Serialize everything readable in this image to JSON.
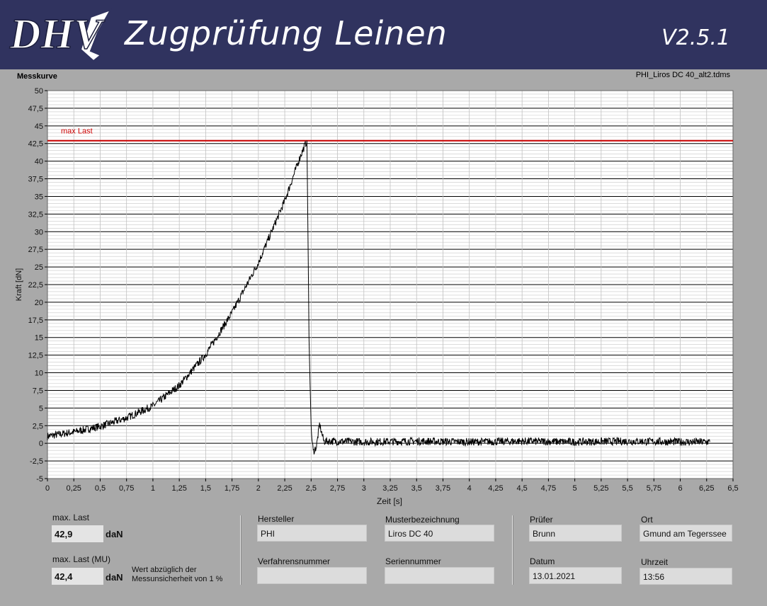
{
  "header": {
    "logo_text": "DHV",
    "title": "Zugprüfung Leinen",
    "version": "V2.5.1"
  },
  "chart_panel": {
    "caption": "Messkurve",
    "file_name": "PHI_Liros DC 40_alt2.tdms"
  },
  "chart_data": {
    "type": "line",
    "xlabel": "Zeit [s]",
    "ylabel": "Kraft [dN]",
    "xlim": [
      0,
      6.5
    ],
    "ylim": [
      -5,
      50
    ],
    "x_ticks": [
      "0",
      "0,25",
      "0,5",
      "0,75",
      "1",
      "1,25",
      "1,5",
      "1,75",
      "2",
      "2,25",
      "2,5",
      "2,75",
      "3",
      "3,25",
      "3,5",
      "3,75",
      "4",
      "4,25",
      "4,5",
      "4,75",
      "5",
      "5,25",
      "5,5",
      "5,75",
      "6",
      "6,25",
      "6,5"
    ],
    "y_ticks": [
      "50",
      "47,5",
      "45",
      "42,5",
      "40",
      "37,5",
      "35",
      "32,5",
      "30",
      "27,5",
      "25",
      "22,5",
      "20",
      "17,5",
      "15",
      "12,5",
      "10",
      "7,5",
      "5",
      "2,5",
      "0",
      "-2,5",
      "-5"
    ],
    "grid": true,
    "reference_line": {
      "name": "max Last",
      "y": 42.9,
      "color": "#cc0000"
    },
    "series": [
      {
        "color": "#000000",
        "x": [
          0,
          0.25,
          0.5,
          0.75,
          1.0,
          1.25,
          1.5,
          1.75,
          2.0,
          2.25,
          2.4,
          2.46,
          2.47,
          2.48,
          2.5,
          2.52,
          2.55,
          2.58,
          2.62,
          2.7,
          3.0,
          3.5,
          4.0,
          4.5,
          5.0,
          5.5,
          6.0,
          6.28
        ],
        "y": [
          1.0,
          1.6,
          2.4,
          3.6,
          5.3,
          8.2,
          12.6,
          18.5,
          25.6,
          34.4,
          40.8,
          42.9,
          30.0,
          15.0,
          2.0,
          -1.2,
          -0.5,
          2.7,
          0.3,
          0.3,
          0.2,
          0.3,
          0.2,
          0.3,
          0.2,
          0.3,
          0.2,
          0.2
        ]
      }
    ]
  },
  "results": {
    "max_last_label": "max. Last",
    "max_last_value": "42,9",
    "max_last_unit": "daN",
    "max_last_mu_label": "max. Last (MU)",
    "max_last_mu_value": "42,4",
    "max_last_mu_unit": "daN",
    "mu_note_line1": "Wert abzüglich der",
    "mu_note_line2": "Messunsicherheit von 1 %"
  },
  "info": {
    "hersteller_label": "Hersteller",
    "hersteller_value": "PHI",
    "musterbezeichnung_label": "Musterbezeichnung",
    "musterbezeichnung_value": "Liros DC 40",
    "verfahrensnummer_label": "Verfahrensnummer",
    "verfahrensnummer_value": "",
    "seriennummer_label": "Seriennummer",
    "seriennummer_value": "",
    "pruefer_label": "Prüfer",
    "pruefer_value": "Brunn",
    "ort_label": "Ort",
    "ort_value": "Gmund am Tegerssee",
    "datum_label": "Datum",
    "datum_value": "13.01.2021",
    "uhrzeit_label": "Uhrzeit",
    "uhrzeit_value": "13:56"
  }
}
